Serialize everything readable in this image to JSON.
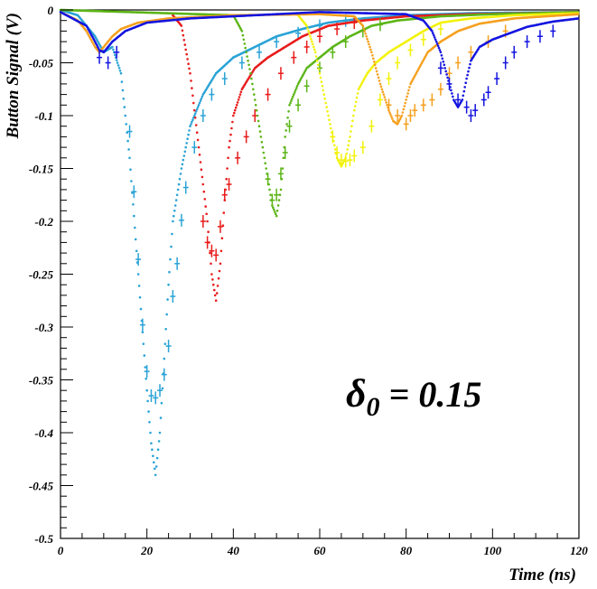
{
  "chart_data": {
    "type": "scatter",
    "title": "",
    "xlabel": "Time (ns)",
    "ylabel": "Button Signal (V)",
    "xlim": [
      0,
      120
    ],
    "ylim": [
      -0.5,
      0
    ],
    "x_ticks": [
      0,
      20,
      40,
      60,
      80,
      100,
      120
    ],
    "x_tick_labels": [
      "0",
      "20",
      "40",
      "60",
      "80",
      "100",
      "120"
    ],
    "y_ticks": [
      0,
      -0.05,
      -0.1,
      -0.15,
      -0.2,
      -0.25,
      -0.3,
      -0.35,
      -0.4,
      -0.45,
      -0.5
    ],
    "y_tick_labels": [
      "0",
      "-0.05",
      "-0.1",
      "-0.15",
      "-0.2",
      "-0.25",
      "-0.3",
      "-0.35",
      "-0.4",
      "-0.45",
      "-0.5"
    ],
    "grid": false,
    "legend": "none",
    "annotation": {
      "symbol": "δ",
      "subscript": "0",
      "text": " = 0.15"
    },
    "series": [
      {
        "color": "#2aa3d6",
        "peak_x": 22,
        "peak_y": -0.44,
        "curve": [
          [
            0,
            0
          ],
          [
            4,
            -0.005
          ],
          [
            8,
            -0.025
          ],
          [
            10,
            -0.04
          ],
          [
            12,
            -0.035
          ],
          [
            14,
            -0.06
          ],
          [
            16,
            -0.14
          ],
          [
            18,
            -0.25
          ],
          [
            20,
            -0.36
          ],
          [
            21,
            -0.41
          ],
          [
            22,
            -0.44
          ],
          [
            23,
            -0.4
          ],
          [
            24,
            -0.33
          ],
          [
            25,
            -0.26
          ],
          [
            26,
            -0.2
          ],
          [
            28,
            -0.15
          ],
          [
            30,
            -0.11
          ],
          [
            33,
            -0.08
          ],
          [
            36,
            -0.06
          ],
          [
            40,
            -0.045
          ],
          [
            45,
            -0.035
          ],
          [
            50,
            -0.025
          ],
          [
            56,
            -0.018
          ],
          [
            62,
            -0.012
          ],
          [
            70,
            -0.008
          ],
          [
            80,
            -0.005
          ],
          [
            95,
            -0.003
          ],
          [
            120,
            -0.002
          ]
        ],
        "errorbar_points": [
          [
            16,
            -0.115
          ],
          [
            17,
            -0.172
          ],
          [
            18,
            -0.236
          ],
          [
            19,
            -0.298
          ],
          [
            20,
            -0.342
          ],
          [
            21,
            -0.365
          ],
          [
            22,
            -0.367
          ],
          [
            23,
            -0.36
          ],
          [
            24,
            -0.345
          ],
          [
            25,
            -0.318
          ],
          [
            26,
            -0.271
          ],
          [
            27,
            -0.24
          ],
          [
            28,
            -0.199
          ],
          [
            29,
            -0.168
          ],
          [
            31,
            -0.13
          ],
          [
            33,
            -0.1
          ],
          [
            35,
            -0.08
          ],
          [
            38,
            -0.065
          ],
          [
            42,
            -0.05
          ],
          [
            46,
            -0.04
          ],
          [
            50,
            -0.03
          ],
          [
            55,
            -0.022
          ],
          [
            60,
            -0.015
          ],
          [
            66,
            -0.01
          ]
        ]
      },
      {
        "color": "#e81c1c",
        "peak_x": 36,
        "peak_y": -0.275,
        "curve": [
          [
            26,
            -0.005
          ],
          [
            28,
            -0.015
          ],
          [
            30,
            -0.06
          ],
          [
            32,
            -0.13
          ],
          [
            34,
            -0.2
          ],
          [
            35,
            -0.25
          ],
          [
            36,
            -0.275
          ],
          [
            37,
            -0.24
          ],
          [
            38,
            -0.18
          ],
          [
            39,
            -0.13
          ],
          [
            40,
            -0.1
          ],
          [
            42,
            -0.075
          ],
          [
            45,
            -0.055
          ],
          [
            48,
            -0.045
          ],
          [
            52,
            -0.035
          ],
          [
            56,
            -0.025
          ],
          [
            62,
            -0.015
          ],
          [
            70,
            -0.01
          ],
          [
            80,
            -0.006
          ],
          [
            95,
            -0.004
          ],
          [
            120,
            -0.002
          ]
        ],
        "errorbar_points": [
          [
            33,
            -0.2
          ],
          [
            34,
            -0.22
          ],
          [
            35,
            -0.228
          ],
          [
            36,
            -0.232
          ],
          [
            37,
            -0.205
          ],
          [
            38,
            -0.175
          ],
          [
            39,
            -0.165
          ],
          [
            41,
            -0.14
          ],
          [
            43,
            -0.12
          ],
          [
            45,
            -0.1
          ],
          [
            48,
            -0.08
          ],
          [
            51,
            -0.06
          ],
          [
            54,
            -0.045
          ],
          [
            57,
            -0.035
          ],
          [
            60,
            -0.025
          ],
          [
            64,
            -0.018
          ],
          [
            68,
            -0.012
          ]
        ]
      },
      {
        "color": "#5cb517",
        "peak_x": 50,
        "peak_y": -0.195,
        "curve": [
          [
            0,
            0
          ],
          [
            40,
            -0.005
          ],
          [
            42,
            -0.02
          ],
          [
            44,
            -0.06
          ],
          [
            46,
            -0.11
          ],
          [
            48,
            -0.16
          ],
          [
            49,
            -0.185
          ],
          [
            50,
            -0.195
          ],
          [
            51,
            -0.17
          ],
          [
            52,
            -0.12
          ],
          [
            53,
            -0.09
          ],
          [
            55,
            -0.07
          ],
          [
            57,
            -0.055
          ],
          [
            60,
            -0.045
          ],
          [
            63,
            -0.035
          ],
          [
            67,
            -0.025
          ],
          [
            72,
            -0.015
          ],
          [
            78,
            -0.01
          ],
          [
            88,
            -0.006
          ],
          [
            100,
            -0.004
          ],
          [
            120,
            -0.002
          ]
        ],
        "errorbar_points": [
          [
            48,
            -0.16
          ],
          [
            49,
            -0.18
          ],
          [
            50,
            -0.175
          ],
          [
            51,
            -0.155
          ],
          [
            52,
            -0.135
          ],
          [
            53,
            -0.11
          ],
          [
            55,
            -0.09
          ],
          [
            57,
            -0.072
          ],
          [
            60,
            -0.055
          ],
          [
            63,
            -0.04
          ],
          [
            66,
            -0.03
          ],
          [
            70,
            -0.02
          ],
          [
            74,
            -0.014
          ]
        ]
      },
      {
        "color": "#f2f20a",
        "peak_x": 65,
        "peak_y": -0.148,
        "curve": [
          [
            55,
            -0.005
          ],
          [
            57,
            -0.015
          ],
          [
            59,
            -0.04
          ],
          [
            61,
            -0.08
          ],
          [
            63,
            -0.12
          ],
          [
            64,
            -0.14
          ],
          [
            65,
            -0.148
          ],
          [
            66,
            -0.14
          ],
          [
            67,
            -0.12
          ],
          [
            68,
            -0.095
          ],
          [
            69,
            -0.075
          ],
          [
            71,
            -0.06
          ],
          [
            73,
            -0.05
          ],
          [
            76,
            -0.04
          ],
          [
            80,
            -0.03
          ],
          [
            84,
            -0.02
          ],
          [
            88,
            -0.012
          ],
          [
            95,
            -0.008
          ],
          [
            105,
            -0.005
          ],
          [
            120,
            -0.003
          ]
        ],
        "errorbar_points": [
          [
            63,
            -0.12
          ],
          [
            64,
            -0.135
          ],
          [
            65,
            -0.142
          ],
          [
            66,
            -0.143
          ],
          [
            67,
            -0.142
          ],
          [
            68,
            -0.138
          ],
          [
            70,
            -0.13
          ],
          [
            72,
            -0.11
          ],
          [
            74,
            -0.085
          ],
          [
            76,
            -0.065
          ],
          [
            78,
            -0.05
          ],
          [
            81,
            -0.038
          ],
          [
            84,
            -0.028
          ],
          [
            88,
            -0.018
          ]
        ]
      },
      {
        "color": "#f5a01e",
        "peak_x": 78,
        "peak_y": -0.108,
        "curve": [
          [
            0,
            -0.002
          ],
          [
            4,
            -0.01
          ],
          [
            6,
            -0.02
          ],
          [
            8,
            -0.035
          ],
          [
            9,
            -0.04
          ],
          [
            10,
            -0.035
          ],
          [
            12,
            -0.025
          ],
          [
            14,
            -0.018
          ],
          [
            18,
            -0.012
          ],
          [
            25,
            -0.008
          ],
          [
            40,
            -0.005
          ],
          [
            60,
            -0.004
          ],
          [
            68,
            -0.006
          ],
          [
            70,
            -0.015
          ],
          [
            72,
            -0.04
          ],
          [
            74,
            -0.07
          ],
          [
            76,
            -0.095
          ],
          [
            77,
            -0.105
          ],
          [
            78,
            -0.108
          ],
          [
            79,
            -0.1
          ],
          [
            80,
            -0.085
          ],
          [
            81,
            -0.07
          ],
          [
            83,
            -0.055
          ],
          [
            85,
            -0.04
          ],
          [
            88,
            -0.03
          ],
          [
            92,
            -0.02
          ],
          [
            97,
            -0.013
          ],
          [
            105,
            -0.008
          ],
          [
            120,
            -0.004
          ]
        ],
        "errorbar_points": [
          [
            76,
            -0.09
          ],
          [
            78,
            -0.1
          ],
          [
            80,
            -0.108
          ],
          [
            81,
            -0.1
          ],
          [
            82,
            -0.095
          ],
          [
            84,
            -0.09
          ],
          [
            86,
            -0.085
          ],
          [
            88,
            -0.075
          ],
          [
            90,
            -0.06
          ],
          [
            92,
            -0.05
          ],
          [
            95,
            -0.04
          ],
          [
            99,
            -0.03
          ],
          [
            103,
            -0.02
          ]
        ]
      },
      {
        "color": "#1414e0",
        "peak_x": 92,
        "peak_y": -0.092,
        "curve": [
          [
            0,
            -0.002
          ],
          [
            6,
            -0.015
          ],
          [
            8,
            -0.03
          ],
          [
            9,
            -0.038
          ],
          [
            10,
            -0.04
          ],
          [
            12,
            -0.03
          ],
          [
            15,
            -0.02
          ],
          [
            20,
            -0.012
          ],
          [
            30,
            -0.008
          ],
          [
            50,
            -0.004
          ],
          [
            60,
            -0.002
          ],
          [
            80,
            -0.004
          ],
          [
            84,
            -0.01
          ],
          [
            86,
            -0.02
          ],
          [
            88,
            -0.04
          ],
          [
            90,
            -0.07
          ],
          [
            91,
            -0.085
          ],
          [
            92,
            -0.092
          ],
          [
            93,
            -0.085
          ],
          [
            94,
            -0.065
          ],
          [
            95,
            -0.048
          ],
          [
            97,
            -0.035
          ],
          [
            100,
            -0.028
          ],
          [
            104,
            -0.022
          ],
          [
            108,
            -0.016
          ],
          [
            114,
            -0.011
          ],
          [
            120,
            -0.008
          ]
        ],
        "errorbar_points": [
          [
            9,
            -0.045
          ],
          [
            11,
            -0.05
          ],
          [
            13,
            -0.04
          ],
          [
            88,
            -0.055
          ],
          [
            90,
            -0.07
          ],
          [
            92,
            -0.085
          ],
          [
            94,
            -0.092
          ],
          [
            95,
            -0.1
          ],
          [
            96,
            -0.095
          ],
          [
            98,
            -0.085
          ],
          [
            99,
            -0.078
          ],
          [
            101,
            -0.065
          ],
          [
            103,
            -0.05
          ],
          [
            105,
            -0.04
          ],
          [
            108,
            -0.03
          ],
          [
            111,
            -0.025
          ],
          [
            114,
            -0.02
          ]
        ]
      }
    ]
  }
}
